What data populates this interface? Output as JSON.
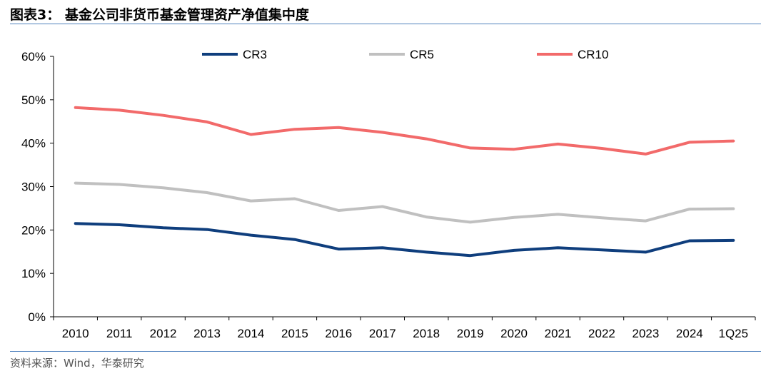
{
  "header": {
    "title": "图表3：  基金公司非货币基金管理资产净值集中度"
  },
  "footer": {
    "source": "资料来源：Wind，华泰研究"
  },
  "chart_data": {
    "type": "line",
    "categories": [
      "2010",
      "2011",
      "2012",
      "2013",
      "2014",
      "2015",
      "2016",
      "2017",
      "2018",
      "2019",
      "2020",
      "2021",
      "2022",
      "2023",
      "2024",
      "1Q25"
    ],
    "ylim": [
      0,
      60
    ],
    "yticks": [
      0,
      10,
      20,
      30,
      40,
      50,
      60
    ],
    "ytick_labels": [
      "0%",
      "10%",
      "20%",
      "30%",
      "40%",
      "50%",
      "60%"
    ],
    "grid": false,
    "legend": "top",
    "series": [
      {
        "name": "CR3",
        "color": "#0f3e7d",
        "values": [
          21.5,
          21.2,
          20.5,
          20.1,
          18.8,
          17.8,
          15.6,
          15.9,
          14.9,
          14.1,
          15.3,
          15.9,
          15.4,
          14.9,
          17.5,
          17.6
        ]
      },
      {
        "name": "CR5",
        "color": "#c0c0c0",
        "values": [
          30.8,
          30.5,
          29.7,
          28.6,
          26.7,
          27.2,
          24.5,
          25.4,
          23.0,
          21.8,
          22.9,
          23.6,
          22.8,
          22.1,
          24.8,
          24.9
        ]
      },
      {
        "name": "CR10",
        "color": "#f26a6a",
        "values": [
          48.2,
          47.6,
          46.4,
          44.9,
          42.0,
          43.2,
          43.6,
          42.5,
          41.0,
          38.9,
          38.6,
          39.8,
          38.8,
          37.5,
          40.2,
          40.5
        ]
      }
    ]
  }
}
